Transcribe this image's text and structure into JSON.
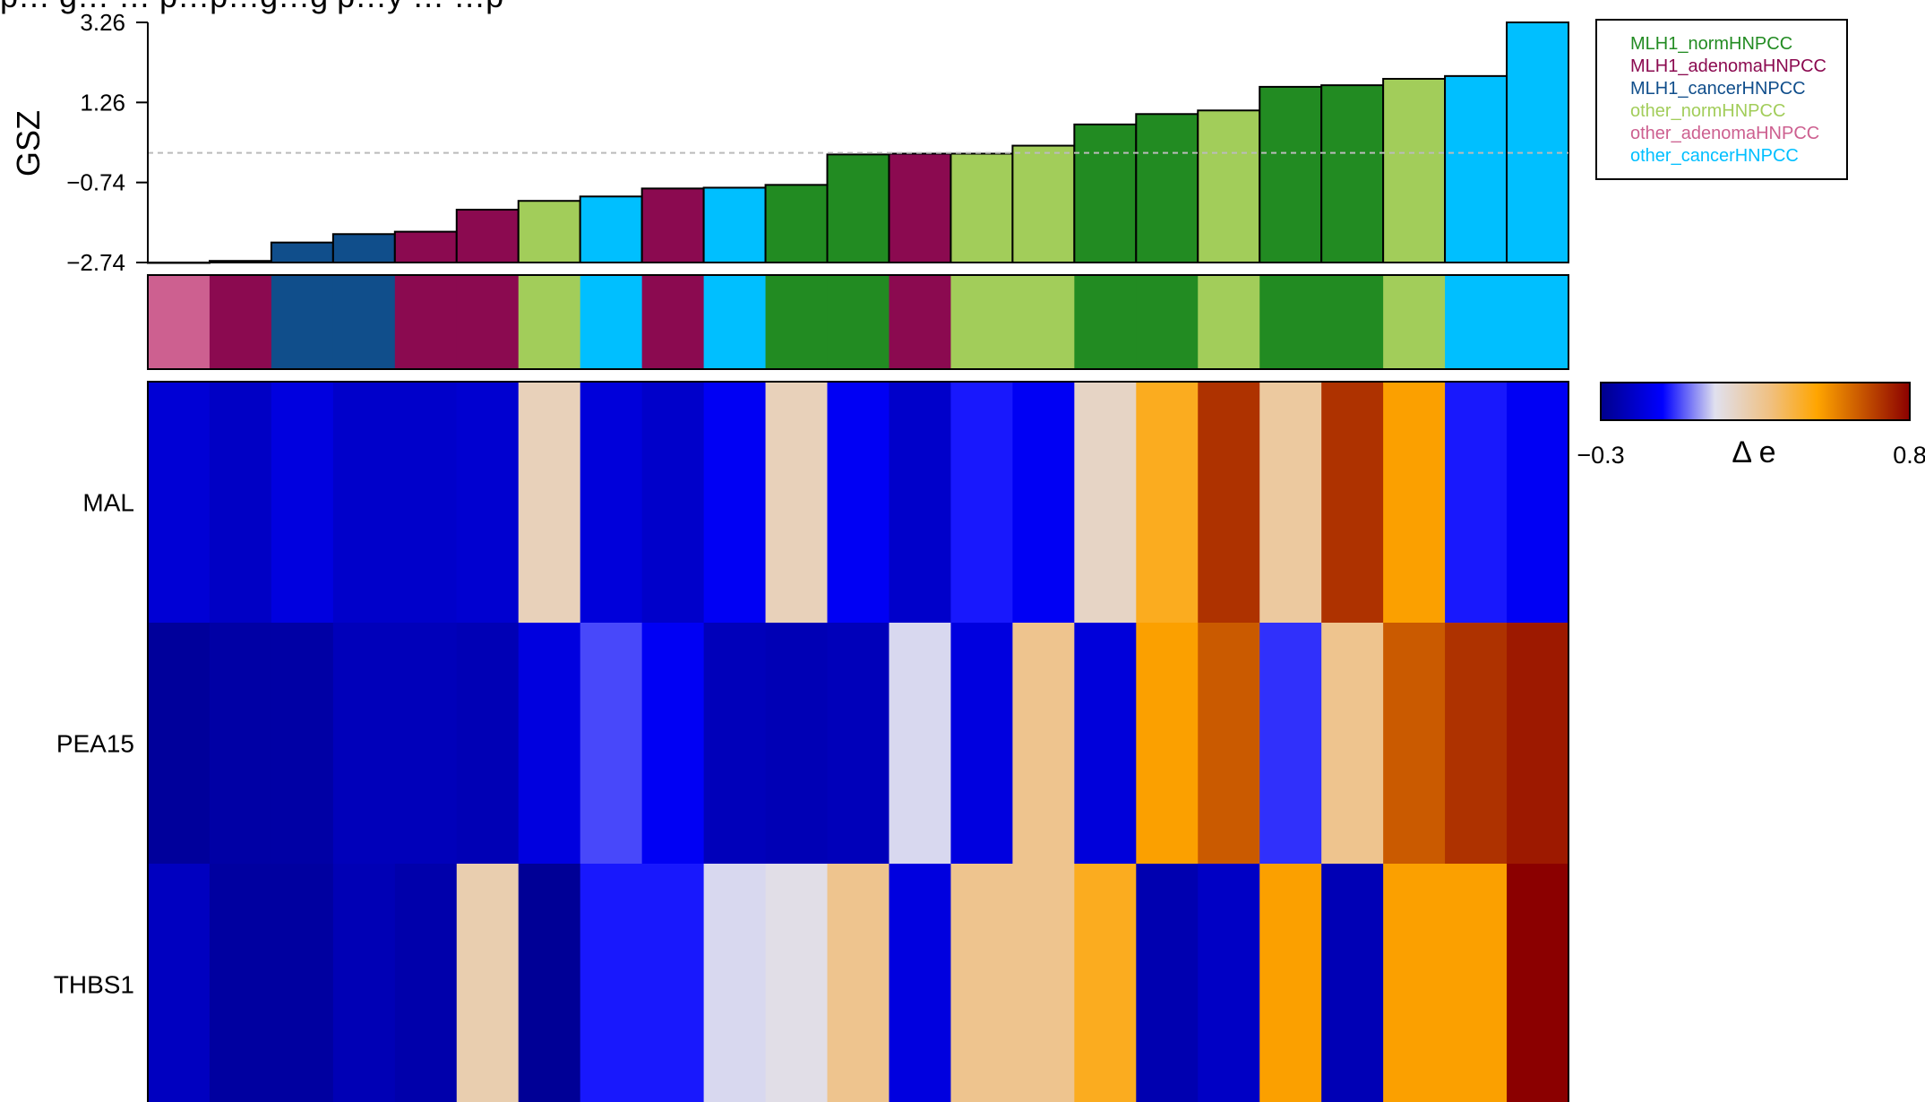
{
  "chart_data": {
    "type": "heatmap",
    "title_fragment": "p… g… … p…p…g…g p…y … …p",
    "bar_panel": {
      "type": "bar",
      "ylabel": "GSZ",
      "ylim": [
        -2.74,
        3.26
      ],
      "yticks": [
        3.26,
        1.26,
        -0.74,
        -2.74
      ],
      "reference_line": 0.0,
      "values": [
        -2.74,
        -2.7,
        -2.24,
        -2.03,
        -1.97,
        -1.42,
        -1.2,
        -1.09,
        -0.89,
        -0.87,
        -0.8,
        -0.04,
        -0.02,
        -0.02,
        0.18,
        0.71,
        0.97,
        1.06,
        1.65,
        1.69,
        1.85,
        1.92,
        3.26
      ],
      "groups": [
        4,
        1,
        2,
        2,
        1,
        1,
        3,
        5,
        1,
        5,
        0,
        0,
        1,
        3,
        3,
        0,
        0,
        3,
        0,
        0,
        3,
        5,
        5
      ]
    },
    "annotation_row": [
      4,
      1,
      2,
      2,
      1,
      1,
      3,
      5,
      1,
      5,
      0,
      0,
      1,
      3,
      3,
      0,
      0,
      3,
      0,
      0,
      3,
      5,
      5
    ],
    "heatmap": {
      "rows": [
        "MAL",
        "PEA15",
        "THBS1"
      ],
      "values": [
        [
          -0.16,
          -0.19,
          -0.14,
          -0.18,
          -0.18,
          -0.17,
          0.2,
          -0.15,
          -0.18,
          -0.1,
          0.2,
          -0.1,
          -0.18,
          -0.06,
          -0.1,
          0.18,
          0.43,
          0.7,
          0.25,
          0.7,
          0.48,
          -0.06,
          -0.1
        ],
        [
          -0.27,
          -0.25,
          -0.25,
          -0.21,
          -0.21,
          -0.22,
          -0.14,
          -0.02,
          -0.1,
          -0.21,
          -0.22,
          -0.21,
          0.1,
          -0.14,
          0.28,
          -0.15,
          0.48,
          0.62,
          -0.04,
          0.28,
          0.62,
          0.7,
          0.75
        ],
        [
          -0.2,
          -0.26,
          -0.26,
          -0.22,
          -0.24,
          0.22,
          -0.28,
          -0.06,
          -0.06,
          0.1,
          0.12,
          0.28,
          -0.14,
          0.28,
          0.28,
          0.43,
          -0.23,
          -0.19,
          0.48,
          -0.22,
          0.48,
          0.48,
          0.8
        ]
      ]
    },
    "legend": {
      "entries": [
        "MLH1_normHNPCC",
        "MLH1_adenomaHNPCC",
        "MLH1_cancerHNPCC",
        "other_normHNPCC",
        "other_adenomaHNPCC",
        "other_cancerHNPCC"
      ],
      "colors": [
        "#228B22",
        "#8B0A50",
        "#104E8B",
        "#A2CD5A",
        "#CD6090",
        "#00BFFF"
      ],
      "placement": "top-right"
    },
    "color_scale": {
      "label": "Δ e",
      "min": -0.3,
      "max": 0.8,
      "min_label": "−0.3",
      "max_label": "0.8",
      "stops": [
        [
          0.0,
          "#00008B"
        ],
        [
          0.2,
          "#0000FF"
        ],
        [
          0.37,
          "#E0E0EE"
        ],
        [
          0.55,
          "#F0C080"
        ],
        [
          0.7,
          "#FFA500"
        ],
        [
          1.0,
          "#8B0000"
        ]
      ]
    }
  }
}
